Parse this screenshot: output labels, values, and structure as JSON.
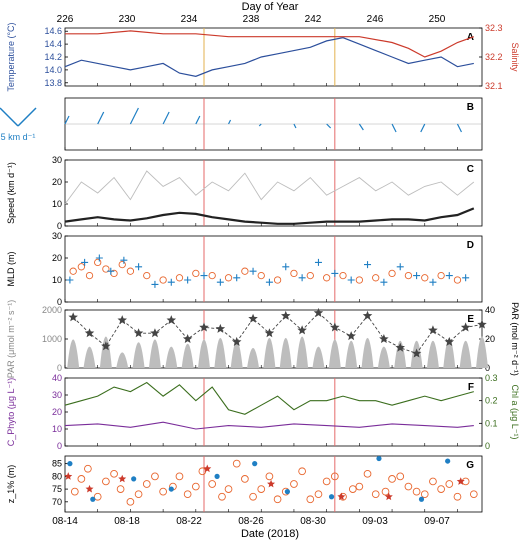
{
  "figure": {
    "top_axis_label": "Day of Year",
    "bottom_axis_label": "Date (2018)",
    "top_ticks": [
      "226",
      "230",
      "234",
      "238",
      "242",
      "246",
      "250"
    ],
    "bottom_ticks": [
      "08-14",
      "08-18",
      "08-22",
      "08-26",
      "08-30",
      "09-03",
      "09-07"
    ],
    "vector_scale_label": "5 km d⁻¹",
    "colors": {
      "blue": "#2c4f9c",
      "lightblue": "#1f7fc4",
      "red": "#cc3a2b",
      "orange": "#e8662e",
      "purple": "#7a2d9a",
      "green": "#3b6e1e",
      "gray": "#bdbdbd",
      "vline": "#e46a6a",
      "vline_A": "#e3b24f"
    }
  },
  "chart_data": [
    {
      "panel": "A",
      "type": "line",
      "ylabel_left": "Temperature (°C)",
      "ylabel_right": "Salinity",
      "yticks_left": [
        "14.6",
        "14.4",
        "14.2",
        "14.0",
        "13.8"
      ],
      "yticks_right": [
        "32.3",
        "32.2",
        "32.1"
      ],
      "ylim_left": [
        13.75,
        14.65
      ],
      "ylim_right": [
        32.1,
        32.3
      ],
      "series": [
        {
          "axis": "left",
          "color": "blue",
          "x": [
            226,
            227,
            228,
            229,
            230,
            231,
            232,
            233,
            234,
            235,
            236,
            237,
            238,
            239,
            240,
            241,
            242,
            243,
            244,
            245,
            246,
            247,
            248,
            249,
            250,
            251
          ],
          "y": [
            14.05,
            14.15,
            14.1,
            14.05,
            14.0,
            14.05,
            14.1,
            13.95,
            13.9,
            14.0,
            14.05,
            14.1,
            14.2,
            14.25,
            14.3,
            14.35,
            14.45,
            14.5,
            14.4,
            14.3,
            14.2,
            14.1,
            14.15,
            14.2,
            14.05,
            14.1
          ]
        },
        {
          "axis": "right",
          "color": "red",
          "x": [
            226,
            228,
            230,
            232,
            234,
            236,
            238,
            240,
            242,
            244,
            246,
            247,
            248,
            249,
            250,
            251
          ],
          "y": [
            32.28,
            32.28,
            32.29,
            32.28,
            32.28,
            32.27,
            32.27,
            32.27,
            32.27,
            32.27,
            32.25,
            32.23,
            32.2,
            32.22,
            32.25,
            32.27
          ]
        }
      ]
    },
    {
      "panel": "B",
      "type": "quiver",
      "x": [
        226,
        228,
        230,
        232,
        234,
        236,
        238,
        240,
        242,
        244,
        246,
        248,
        250
      ],
      "u": [
        1.0,
        1.5,
        2.0,
        1.5,
        1.0,
        0.5,
        -0.5,
        0.5,
        1.0,
        1.0,
        1.0,
        -1.0,
        1.0
      ],
      "v": [
        2.0,
        3.0,
        4.0,
        3.0,
        2.0,
        1.0,
        -0.5,
        -1.0,
        -1.0,
        -1.5,
        -2.0,
        -2.0,
        -2.0
      ]
    },
    {
      "panel": "C",
      "type": "line",
      "ylabel": "Speed (km d⁻¹)",
      "yticks": [
        "0",
        "10",
        "20",
        "30"
      ],
      "ylim": [
        0,
        30
      ],
      "series": [
        {
          "color": "gray",
          "x": [
            226,
            227,
            228,
            229,
            230,
            231,
            232,
            233,
            234,
            235,
            236,
            237,
            238,
            239,
            240,
            241,
            242,
            243,
            244,
            245,
            246,
            247,
            248,
            249,
            250,
            251
          ],
          "y": [
            10,
            20,
            15,
            22,
            12,
            25,
            18,
            22,
            14,
            20,
            16,
            24,
            12,
            20,
            16,
            22,
            14,
            18,
            22,
            16,
            20,
            14,
            18,
            20,
            14,
            20
          ]
        },
        {
          "color": "black",
          "x": [
            226,
            227,
            228,
            229,
            230,
            231,
            232,
            233,
            234,
            235,
            236,
            237,
            238,
            239,
            240,
            241,
            242,
            243,
            244,
            245,
            246,
            247,
            248,
            249,
            250,
            251
          ],
          "y": [
            2,
            3,
            4,
            3,
            2.5,
            3.5,
            5,
            6,
            5.5,
            4,
            3,
            2,
            1.5,
            1,
            1,
            1.5,
            2,
            2,
            2,
            2.5,
            3,
            3,
            2.5,
            4,
            5,
            8
          ]
        }
      ]
    },
    {
      "panel": "D",
      "type": "scatter",
      "ylabel": "MLD (m)",
      "yticks": [
        "0",
        "10",
        "20",
        "30"
      ],
      "ylim": [
        0,
        30
      ],
      "series": [
        {
          "marker": "circle",
          "color": "orange",
          "x": [
            226.5,
            227,
            227.5,
            228,
            228.5,
            229,
            229.5,
            230,
            231,
            232,
            233,
            234,
            235,
            236,
            237,
            238,
            239,
            240,
            241,
            242,
            243,
            244,
            245,
            246,
            247,
            248,
            249,
            250
          ],
          "y": [
            14,
            16,
            12,
            18,
            15,
            13,
            17,
            14,
            12,
            10,
            11,
            13,
            12,
            11,
            14,
            12,
            10,
            13,
            12,
            11,
            12,
            10,
            11,
            13,
            12,
            11,
            12,
            10
          ]
        },
        {
          "marker": "plus",
          "color": "lightblue",
          "x": [
            226.3,
            227.2,
            228.1,
            228.8,
            229.6,
            230.5,
            231.5,
            232.5,
            233.5,
            234.5,
            235.5,
            236.5,
            237.5,
            238.5,
            239.5,
            240.5,
            241.5,
            242.5,
            243.5,
            244.5,
            245.5,
            246.5,
            247.5,
            248.5,
            249.5,
            250.5
          ],
          "y": [
            10,
            18,
            20,
            14,
            19,
            16,
            8,
            9,
            10,
            12,
            9,
            11,
            14,
            9,
            16,
            11,
            18,
            13,
            10,
            17,
            9,
            16,
            12,
            9,
            12,
            11
          ]
        }
      ]
    },
    {
      "panel": "E",
      "type": "bar+line",
      "ylabel_left": "PAR (μmol m⁻² s⁻¹)",
      "ylabel_right": "PAR (mol m⁻² d⁻¹)",
      "yticks_left": [
        "0",
        "1000",
        "2000"
      ],
      "yticks_right": [
        "0",
        "20",
        "40"
      ],
      "ylim_left": [
        0,
        2000
      ],
      "ylim_right": [
        0,
        40
      ],
      "bars": {
        "color": "gray",
        "x": [
          226,
          227,
          228,
          229,
          230,
          231,
          232,
          233,
          234,
          235,
          236,
          237,
          238,
          239,
          240,
          241,
          242,
          243,
          244,
          245,
          246,
          247,
          248,
          249,
          250,
          251
        ],
        "y": [
          1700,
          1200,
          1900,
          800,
          1500,
          1700,
          1200,
          1400,
          1700,
          1800,
          1600,
          1100,
          1800,
          1800,
          1900,
          1200,
          1700,
          1600,
          1800,
          1200,
          1600,
          1600,
          1600,
          1800,
          1600,
          1900
        ]
      },
      "stars": {
        "color": "gray",
        "x": [
          226,
          227,
          228,
          229,
          230,
          231,
          232,
          233,
          234,
          235,
          236,
          237,
          238,
          239,
          240,
          241,
          242,
          243,
          244,
          245,
          246,
          247,
          248,
          249,
          250,
          251
        ],
        "y": [
          35,
          24,
          15,
          33,
          24,
          24,
          33,
          20,
          28,
          27,
          18,
          34,
          24,
          36,
          26,
          38,
          28,
          22,
          36,
          20,
          14,
          10,
          26,
          18,
          28,
          30
        ]
      }
    },
    {
      "panel": "F",
      "type": "line",
      "ylabel_left": "C_Phyto (μg L⁻¹)",
      "ylabel_right": "Chl a (μg L⁻¹)",
      "yticks_left": [
        "0",
        "10",
        "20",
        "30",
        "40"
      ],
      "yticks_right": [
        "0",
        "0.1",
        "0.2",
        "0.3"
      ],
      "ylim_left": [
        0,
        40
      ],
      "ylim_right": [
        0,
        0.3
      ],
      "series": [
        {
          "axis": "left",
          "color": "purple",
          "x": [
            226,
            228,
            230,
            232,
            234,
            236,
            238,
            240,
            242,
            244,
            246,
            248,
            250,
            251
          ],
          "y": [
            12,
            13,
            11,
            14,
            10,
            12,
            11,
            13,
            12,
            11,
            13,
            12,
            11,
            12
          ]
        },
        {
          "axis": "right",
          "color": "green",
          "x": [
            226,
            227,
            228,
            229,
            230,
            231,
            232,
            233,
            234,
            235,
            236,
            237,
            238,
            239,
            240,
            241,
            242,
            243,
            244,
            245,
            246,
            247,
            248,
            249,
            250,
            251
          ],
          "y": [
            0.18,
            0.2,
            0.22,
            0.26,
            0.24,
            0.28,
            0.22,
            0.27,
            0.2,
            0.26,
            0.16,
            0.14,
            0.18,
            0.22,
            0.16,
            0.2,
            0.2,
            0.22,
            0.2,
            0.2,
            0.18,
            0.2,
            0.22,
            0.2,
            0.22,
            0.24
          ]
        }
      ]
    },
    {
      "panel": "G",
      "type": "scatter",
      "ylabel": "z_1% (m)",
      "yticks": [
        "70",
        "75",
        "80",
        "85"
      ],
      "ylim": [
        66,
        88
      ],
      "series": [
        {
          "marker": "open-circle",
          "color": "orange",
          "x": [
            226.6,
            227.0,
            227.4,
            228.0,
            228.5,
            229.0,
            229.4,
            230.0,
            230.5,
            231.0,
            231.5,
            232.0,
            232.6,
            233.0,
            233.5,
            234.0,
            234.4,
            235.0,
            235.6,
            236.0,
            236.5,
            237.0,
            237.5,
            238.0,
            238.5,
            239.0,
            239.5,
            240.0,
            240.5,
            241.0,
            241.5,
            242.0,
            242.5,
            243.0,
            243.6,
            244.0,
            244.5,
            245.0,
            245.6,
            246.0,
            246.5,
            247.0,
            247.5,
            248.0,
            248.5,
            249.0,
            249.5,
            250.0,
            250.5,
            251.0
          ],
          "y": [
            74,
            79,
            83,
            72,
            78,
            81,
            75,
            70,
            73,
            77,
            80,
            74,
            76,
            80,
            73,
            76,
            82,
            77,
            72,
            75,
            85,
            79,
            72,
            75,
            80,
            71,
            74,
            77,
            82,
            71,
            73,
            78,
            80,
            72,
            75,
            76,
            81,
            73,
            74,
            79,
            80,
            76,
            74,
            73,
            78,
            75,
            77,
            72,
            78,
            73
          ]
        },
        {
          "marker": "dot",
          "color": "lightblue",
          "x": [
            226.3,
            227.7,
            230.2,
            232.5,
            235.3,
            237.6,
            239.6,
            242.3,
            245.2,
            247.8,
            249.4
          ],
          "y": [
            85,
            71,
            79,
            75,
            80,
            85,
            74,
            72,
            87,
            71,
            86
          ]
        },
        {
          "marker": "star",
          "color": "red",
          "x": [
            226.2,
            227.5,
            229.5,
            234.7,
            238.6,
            242.9,
            245.8,
            250.2
          ],
          "y": [
            80,
            75,
            79,
            83,
            77,
            72,
            72,
            78
          ]
        }
      ]
    }
  ]
}
